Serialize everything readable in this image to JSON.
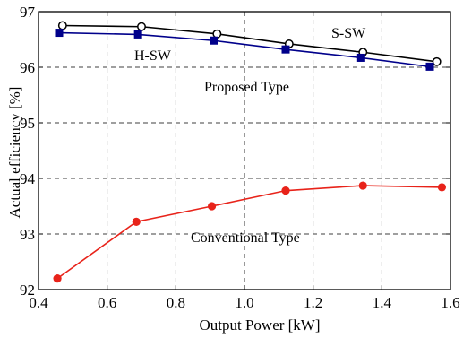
{
  "chart_data": {
    "type": "line",
    "xlabel": "Output Power [kW]",
    "ylabel": "Actual efficiency [%]",
    "xlim": [
      0.4,
      1.6
    ],
    "ylim": [
      92,
      97
    ],
    "xticks": [
      "0.4",
      "0.6",
      "0.8",
      "1.0",
      "1.2",
      "1.4",
      "1.6"
    ],
    "yticks": [
      "92",
      "93",
      "94",
      "95",
      "96",
      "97"
    ],
    "grid": true,
    "series": [
      {
        "name": "S-SW",
        "color": "#000000",
        "marker": "open-circle",
        "x": [
          0.47,
          0.7,
          0.92,
          1.13,
          1.345,
          1.56
        ],
        "y": [
          96.75,
          96.73,
          96.6,
          96.42,
          96.27,
          96.1
        ]
      },
      {
        "name": "H-SW",
        "color": "#00008b",
        "marker": "filled-square",
        "x": [
          0.46,
          0.69,
          0.91,
          1.12,
          1.34,
          1.54
        ],
        "y": [
          96.62,
          96.59,
          96.48,
          96.32,
          96.17,
          96.01
        ]
      },
      {
        "name": "",
        "color": "#e8231a",
        "marker": "filled-circle",
        "x": [
          0.455,
          0.685,
          0.905,
          1.12,
          1.345,
          1.575
        ],
        "y": [
          92.2,
          93.22,
          93.5,
          93.78,
          93.87,
          93.84
        ]
      }
    ],
    "annotations": [
      "S-SW",
      "H-SW",
      "Proposed Type",
      "Conventional Type"
    ]
  }
}
